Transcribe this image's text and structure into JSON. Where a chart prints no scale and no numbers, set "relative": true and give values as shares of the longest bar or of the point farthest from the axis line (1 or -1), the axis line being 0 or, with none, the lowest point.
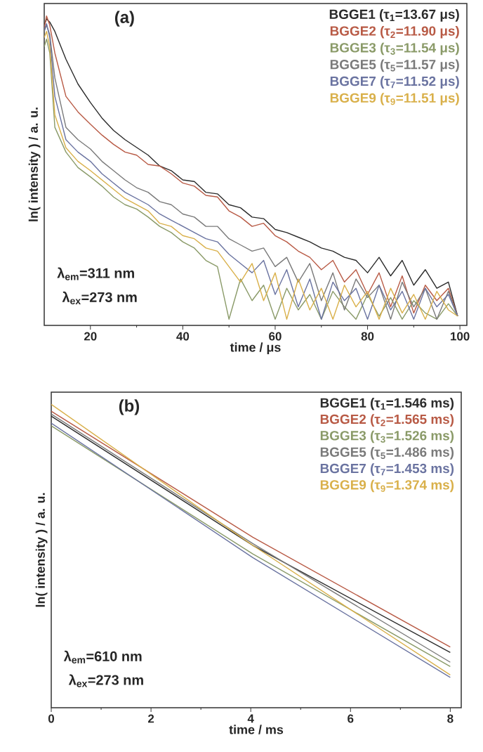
{
  "chart_data": [
    {
      "type": "line",
      "title": "(a)",
      "xlabel": "time / μs",
      "ylabel": "ln( intensity ) / a. u.",
      "relative": true,
      "legend": "top right",
      "marker": "none",
      "line_style": "solid",
      "annotations": [
        "λ$_{em}$=311 nm",
        "λ$_{ex}$=273 nm"
      ],
      "xlim": [
        10,
        101.5
      ],
      "xticks": [
        20,
        40,
        60,
        80,
        100
      ],
      "x": [
        10,
        10.5,
        11.2,
        12.3,
        14.7,
        17.3,
        20,
        22.5,
        25,
        27.5,
        30,
        32.5,
        35,
        37.5,
        40,
        42.5,
        45,
        47.5,
        50,
        52.5,
        55,
        57.5,
        60,
        62.5,
        65,
        67.5,
        70,
        72.5,
        75,
        77.5,
        80,
        82.5,
        85,
        87.5,
        90,
        92.5,
        95,
        97.5,
        99.5
      ],
      "series": [
        {
          "name": "BGGE1 (τ$_{1}$=13.67 μs)",
          "color": "#2b2b2b",
          "values": [
            0.97,
            0.99,
            0.98,
            0.95,
            0.86,
            0.78,
            0.72,
            0.67,
            0.63,
            0.6,
            0.575,
            0.55,
            0.515,
            0.5,
            0.47,
            0.465,
            0.43,
            0.425,
            0.39,
            0.38,
            0.35,
            0.345,
            0.31,
            0.3,
            0.285,
            0.27,
            0.25,
            0.24,
            0.22,
            0.21,
            0.17,
            0.22,
            0.16,
            0.21,
            0.13,
            0.18,
            0.12,
            0.14,
            0.03
          ]
        },
        {
          "name": "BGGE2 (τ$_{2}$=11.90 μs)",
          "color": "#b85a45",
          "values": [
            0.96,
            1,
            0.97,
            0.88,
            0.74,
            0.69,
            0.65,
            0.615,
            0.585,
            0.56,
            0.55,
            0.52,
            0.515,
            0.49,
            0.46,
            0.45,
            0.42,
            0.415,
            0.37,
            0.35,
            0.32,
            0.33,
            0.29,
            0.27,
            0.24,
            0.22,
            0.18,
            0.21,
            0.14,
            0.18,
            0.1,
            0.17,
            0.06,
            0.16,
            0.04,
            0.13,
            0.08,
            0.12,
            0.03
          ]
        },
        {
          "name": "BGGE3 (τ$_{3}$=11.54 μs)",
          "color": "#8a9a68",
          "values": [
            0.9,
            0.925,
            0.88,
            0.64,
            0.56,
            0.51,
            0.48,
            0.45,
            0.415,
            0.39,
            0.376,
            0.35,
            0.32,
            0.3,
            0.27,
            0.25,
            0.21,
            0.19,
            0.02,
            0.15,
            0.08,
            0.13,
            0.02,
            0.12,
            0.05,
            0.1,
            0.02,
            0.11,
            0.06,
            0.02,
            0.1,
            0.03,
            0.09,
            0.02,
            0.08,
            0.04,
            0.02,
            0.07,
            0.03
          ]
        },
        {
          "name": "BGGE5 (τ$_{5}$=11.57 μs)",
          "color": "#7a7a7a",
          "values": [
            0.95,
            0.97,
            0.94,
            0.8,
            0.64,
            0.6,
            0.57,
            0.53,
            0.5,
            0.47,
            0.445,
            0.43,
            0.4,
            0.39,
            0.36,
            0.35,
            0.32,
            0.32,
            0.28,
            0.26,
            0.24,
            0.25,
            0.19,
            0.22,
            0.14,
            0.2,
            0.08,
            0.17,
            0.05,
            0.15,
            0.09,
            0.13,
            0.02,
            0.14,
            0.06,
            0.12,
            0.02,
            0.11,
            0.03
          ]
        },
        {
          "name": "BGGE7 (τ$_{7}$=11.52 μs)",
          "color": "#6a73a0",
          "values": [
            0.955,
            0.975,
            0.93,
            0.74,
            0.6,
            0.56,
            0.53,
            0.49,
            0.46,
            0.43,
            0.41,
            0.39,
            0.36,
            0.34,
            0.32,
            0.3,
            0.28,
            0.27,
            0.23,
            0.2,
            0.17,
            0.21,
            0.1,
            0.18,
            0.06,
            0.15,
            0.02,
            0.14,
            0.08,
            0.12,
            0.02,
            0.13,
            0.05,
            0.11,
            0.02,
            0.12,
            0.06,
            0.1,
            0.03
          ]
        },
        {
          "name": "BGGE9 (τ$_{9}$=11.51 μs)",
          "color": "#d9b04a",
          "values": [
            0.93,
            0.95,
            0.9,
            0.68,
            0.574,
            0.53,
            0.5,
            0.47,
            0.44,
            0.41,
            0.39,
            0.37,
            0.33,
            0.32,
            0.29,
            0.28,
            0.25,
            0.24,
            0.19,
            0.14,
            0.2,
            0.08,
            0.17,
            0.02,
            0.15,
            0.05,
            0.12,
            0.02,
            0.13,
            0.06,
            0.11,
            0.02,
            0.12,
            0.04,
            0.1,
            0.02,
            0.11,
            0.05,
            0.03
          ]
        }
      ]
    },
    {
      "type": "line",
      "title": "(b)",
      "xlabel": "time / ms",
      "ylabel": "ln( intensity ) / a. u.",
      "relative": true,
      "legend": "top right",
      "marker": "none",
      "line_style": "solid",
      "annotations": [
        "λ$_{em}$=610 nm",
        "λ$_{ex}$=273 nm"
      ],
      "xlim": [
        0,
        8.22
      ],
      "xticks": [
        0,
        2,
        4,
        6,
        8
      ],
      "x": [
        0,
        4.04,
        8
      ],
      "series": [
        {
          "name": "BGGE1 (τ$_{1}$=1.546 ms)",
          "color": "#2b2b2b",
          "values": [
            0.961,
            0.535,
            0.182
          ]
        },
        {
          "name": "BGGE2 (τ$_{2}$=1.565 ms)",
          "color": "#b85a45",
          "values": [
            0.977,
            0.562,
            0.2
          ]
        },
        {
          "name": "BGGE3 (τ$_{3}$=1.526 ms)",
          "color": "#8a9a68",
          "values": [
            0.929,
            0.507,
            0.136
          ]
        },
        {
          "name": "BGGE5 (τ$_{5}$=1.486 ms)",
          "color": "#7a7a7a",
          "values": [
            0.968,
            0.541,
            0.15
          ]
        },
        {
          "name": "BGGE7 (τ$_{7}$=1.453 ms)",
          "color": "#6a73a0",
          "values": [
            0.938,
            0.495,
            0.1
          ]
        },
        {
          "name": "BGGE9 (τ$_{9}$=1.374 ms)",
          "color": "#d9b04a",
          "values": [
            1.0,
            0.535,
            0.108
          ]
        }
      ]
    }
  ]
}
